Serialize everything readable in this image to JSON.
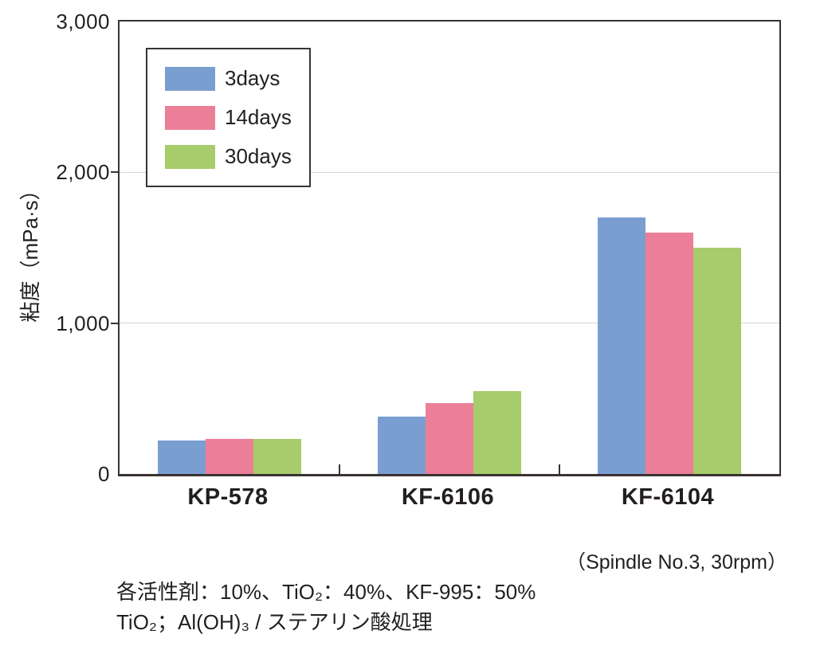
{
  "chart_data": {
    "type": "bar",
    "categories": [
      "KP-578",
      "KF-6106",
      "KF-6104"
    ],
    "series": [
      {
        "name": "3days",
        "color": "#7b9ed1",
        "values": [
          220,
          380,
          1700
        ]
      },
      {
        "name": "14days",
        "color": "#ec7f98",
        "values": [
          230,
          470,
          1600
        ]
      },
      {
        "name": "30days",
        "color": "#a6cc6b",
        "values": [
          230,
          550,
          1500
        ]
      }
    ],
    "title": "",
    "xlabel": "",
    "ylabel": "粘度（mPa·s）",
    "ylim": [
      0,
      3000
    ],
    "ytick_values": [
      0,
      1000,
      2000,
      3000
    ],
    "ytick_labels": [
      "0",
      "1,000",
      "2,000",
      "3,000"
    ],
    "grid": "horizontal",
    "legend_position": "upper-left-inside",
    "legend_entries": [
      "3days",
      "14days",
      "30days"
    ]
  },
  "annotations": {
    "spindle_note": "（Spindle No.3, 30rpm）",
    "footnote_line1": "各活性剤：10%、TiO₂：40%、KF-995：50%",
    "footnote_line2": "TiO₂；Al(OH)₃ / ステアリン酸処理"
  },
  "colors": {
    "axis": "#3a3332",
    "text": "#231f20",
    "gridline": "#d4d4d4",
    "background": "#ffffff"
  }
}
